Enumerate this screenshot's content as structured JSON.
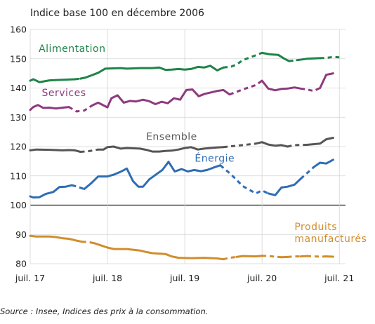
{
  "chart_data": {
    "type": "line",
    "title": "Indice base 100 en décembre 2006",
    "ylim": [
      80,
      160
    ],
    "yticks": [
      80,
      90,
      100,
      110,
      120,
      130,
      140,
      150,
      160
    ],
    "xlim": [
      2017.5,
      2021.58
    ],
    "xticks": [
      {
        "x": 2017.5,
        "label": "juil. 17"
      },
      {
        "x": 2018.5,
        "label": "juil. 18"
      },
      {
        "x": 2019.5,
        "label": "juil. 19"
      },
      {
        "x": 2020.5,
        "label": "juil. 20"
      },
      {
        "x": 2021.5,
        "label": "juil. 21"
      }
    ],
    "reference_line": 100,
    "grid": true,
    "series": [
      {
        "name": "Alimentation",
        "color": "#1e8449",
        "points": [
          [
            2017.5,
            142.5
          ],
          [
            2017.54,
            143
          ],
          [
            2017.62,
            142
          ],
          [
            2017.75,
            142.6
          ],
          [
            2017.92,
            142.8
          ],
          [
            2018.08,
            143
          ],
          [
            2018.15,
            143.2
          ],
          [
            2018.22,
            143.6
          ],
          [
            2018.38,
            145.2
          ],
          [
            2018.47,
            146.6
          ],
          [
            2018.67,
            146.8
          ],
          [
            2018.75,
            146.6
          ],
          [
            2018.92,
            146.8
          ],
          [
            2019.08,
            146.8
          ],
          [
            2019.17,
            147
          ],
          [
            2019.25,
            146.2
          ],
          [
            2019.33,
            146.3
          ],
          [
            2019.42,
            146.5
          ],
          [
            2019.5,
            146.3
          ],
          [
            2019.58,
            146.5
          ],
          [
            2019.67,
            147.2
          ],
          [
            2019.75,
            147
          ],
          [
            2019.83,
            147.6
          ],
          [
            2019.92,
            146
          ],
          [
            2020,
            147
          ],
          [
            2020.1,
            147.3
          ],
          [
            2020.17,
            148
          ],
          [
            2020.25,
            149.5
          ],
          [
            2020.4,
            151
          ],
          [
            2020.5,
            152
          ],
          [
            2020.6,
            151.5
          ],
          [
            2020.71,
            151.3
          ],
          [
            2020.79,
            150
          ],
          [
            2020.85,
            149.2
          ],
          [
            2020.95,
            149.5
          ],
          [
            2021.08,
            150
          ],
          [
            2021.25,
            150.2
          ],
          [
            2021.33,
            150.3
          ],
          [
            2021.42,
            150.6
          ],
          [
            2021.5,
            150.5
          ]
        ],
        "solid_segments": [
          [
            0,
            6
          ],
          [
            6,
            25
          ],
          [
            29,
            34
          ],
          [
            34,
            37
          ]
        ],
        "dashed_segments": [
          [
            5,
            7
          ],
          [
            24,
            30
          ],
          [
            33,
            35
          ],
          [
            36,
            40
          ]
        ]
      },
      {
        "name": "Services",
        "color": "#8e3a7d",
        "points": [
          [
            2017.5,
            132.5
          ],
          [
            2017.54,
            133.5
          ],
          [
            2017.6,
            134.2
          ],
          [
            2017.67,
            133.2
          ],
          [
            2017.75,
            133.3
          ],
          [
            2017.83,
            133
          ],
          [
            2017.92,
            133.3
          ],
          [
            2018,
            133.5
          ],
          [
            2018.1,
            132
          ],
          [
            2018.2,
            132.3
          ],
          [
            2018.3,
            134
          ],
          [
            2018.38,
            135
          ],
          [
            2018.5,
            133.4
          ],
          [
            2018.55,
            136.5
          ],
          [
            2018.63,
            137.5
          ],
          [
            2018.71,
            135
          ],
          [
            2018.79,
            135.6
          ],
          [
            2018.87,
            135.4
          ],
          [
            2018.96,
            136
          ],
          [
            2019.04,
            135.5
          ],
          [
            2019.12,
            134.5
          ],
          [
            2019.2,
            135.3
          ],
          [
            2019.28,
            134.8
          ],
          [
            2019.36,
            136.5
          ],
          [
            2019.44,
            136
          ],
          [
            2019.52,
            139.3
          ],
          [
            2019.6,
            139.5
          ],
          [
            2019.68,
            137.2
          ],
          [
            2019.76,
            138
          ],
          [
            2019.84,
            138.5
          ],
          [
            2019.92,
            139
          ],
          [
            2020,
            139.3
          ],
          [
            2020.08,
            137.8
          ],
          [
            2020.25,
            139.5
          ],
          [
            2020.42,
            141
          ],
          [
            2020.5,
            142.5
          ],
          [
            2020.58,
            139.8
          ],
          [
            2020.67,
            139.2
          ],
          [
            2020.75,
            139.7
          ],
          [
            2020.83,
            139.8
          ],
          [
            2020.92,
            140.2
          ],
          [
            2021,
            139.8
          ],
          [
            2021.08,
            139.5
          ],
          [
            2021.17,
            139
          ],
          [
            2021.25,
            140
          ],
          [
            2021.33,
            144.5
          ],
          [
            2021.42,
            145
          ]
        ],
        "solid_segments": [
          [
            0,
            8
          ],
          [
            10,
            33
          ],
          [
            35,
            42
          ],
          [
            44,
            47
          ]
        ],
        "dashed_segments": [
          [
            7,
            11
          ],
          [
            32,
            36
          ],
          [
            41,
            45
          ]
        ]
      },
      {
        "name": "Ensemble",
        "color": "#555555",
        "points": [
          [
            2017.5,
            118.7
          ],
          [
            2017.58,
            119
          ],
          [
            2017.75,
            118.9
          ],
          [
            2017.92,
            118.7
          ],
          [
            2018,
            118.8
          ],
          [
            2018.08,
            118.7
          ],
          [
            2018.15,
            118.2
          ],
          [
            2018.25,
            118.4
          ],
          [
            2018.38,
            119
          ],
          [
            2018.45,
            119
          ],
          [
            2018.5,
            119.8
          ],
          [
            2018.58,
            120
          ],
          [
            2018.67,
            119.3
          ],
          [
            2018.75,
            119.5
          ],
          [
            2018.92,
            119.3
          ],
          [
            2019,
            118.9
          ],
          [
            2019.08,
            118.3
          ],
          [
            2019.17,
            118.3
          ],
          [
            2019.25,
            118.5
          ],
          [
            2019.33,
            118.6
          ],
          [
            2019.42,
            119
          ],
          [
            2019.5,
            119.5
          ],
          [
            2019.58,
            119.8
          ],
          [
            2019.67,
            119
          ],
          [
            2019.75,
            119.3
          ],
          [
            2019.92,
            119.7
          ],
          [
            2020,
            119.8
          ],
          [
            2020.25,
            120.5
          ],
          [
            2020.42,
            121
          ],
          [
            2020.5,
            121.5
          ],
          [
            2020.58,
            120.7
          ],
          [
            2020.67,
            120.3
          ],
          [
            2020.75,
            120.5
          ],
          [
            2020.83,
            120
          ],
          [
            2020.92,
            120.5
          ],
          [
            2021.08,
            120.6
          ],
          [
            2021.25,
            121
          ],
          [
            2021.33,
            122.5
          ],
          [
            2021.42,
            123
          ]
        ],
        "solid_segments": [
          [
            0,
            7
          ],
          [
            8,
            27
          ],
          [
            28,
            34
          ],
          [
            35,
            39
          ]
        ],
        "dashed_segments": [
          [
            6,
            9
          ],
          [
            26,
            29
          ],
          [
            33,
            36
          ]
        ]
      },
      {
        "name": "Énergie",
        "color": "#2e6db4",
        "points": [
          [
            2017.5,
            103
          ],
          [
            2017.54,
            102.6
          ],
          [
            2017.62,
            102.7
          ],
          [
            2017.7,
            103.8
          ],
          [
            2017.8,
            104.5
          ],
          [
            2017.88,
            106.2
          ],
          [
            2017.96,
            106.3
          ],
          [
            2018.04,
            106.8
          ],
          [
            2018.12,
            106.2
          ],
          [
            2018.2,
            105.5
          ],
          [
            2018.29,
            107.5
          ],
          [
            2018.38,
            109.8
          ],
          [
            2018.5,
            109.8
          ],
          [
            2018.58,
            110.4
          ],
          [
            2018.67,
            111.4
          ],
          [
            2018.75,
            112.5
          ],
          [
            2018.83,
            108.2
          ],
          [
            2018.9,
            106.3
          ],
          [
            2018.96,
            106.3
          ],
          [
            2019.04,
            108.8
          ],
          [
            2019.13,
            110.5
          ],
          [
            2019.21,
            112
          ],
          [
            2019.29,
            114.8
          ],
          [
            2019.37,
            111.5
          ],
          [
            2019.46,
            112.3
          ],
          [
            2019.54,
            111.5
          ],
          [
            2019.62,
            112
          ],
          [
            2019.71,
            111.6
          ],
          [
            2019.79,
            112
          ],
          [
            2019.87,
            112.8
          ],
          [
            2019.96,
            113.6
          ],
          [
            2020.1,
            110.5
          ],
          [
            2020.25,
            106.5
          ],
          [
            2020.42,
            104
          ],
          [
            2020.5,
            105
          ],
          [
            2020.58,
            104
          ],
          [
            2020.67,
            103.4
          ],
          [
            2020.75,
            106
          ],
          [
            2020.83,
            106.3
          ],
          [
            2020.92,
            107
          ],
          [
            2021,
            109
          ],
          [
            2021.17,
            113
          ],
          [
            2021.25,
            114.5
          ],
          [
            2021.33,
            114.2
          ],
          [
            2021.42,
            115.5
          ]
        ],
        "solid_segments": [
          [
            0,
            8
          ],
          [
            9,
            31
          ],
          [
            35,
            41
          ],
          [
            41,
            45
          ]
        ],
        "dashed_segments": [
          [
            7,
            10
          ],
          [
            30,
            36
          ],
          [
            40,
            42
          ]
        ]
      },
      {
        "name": "Produits manufacturés",
        "color": "#d08d2c",
        "points": [
          [
            2017.5,
            89.5
          ],
          [
            2017.58,
            89.3
          ],
          [
            2017.75,
            89.3
          ],
          [
            2017.83,
            89.1
          ],
          [
            2017.92,
            88.7
          ],
          [
            2018,
            88.5
          ],
          [
            2018.08,
            88
          ],
          [
            2018.17,
            87.5
          ],
          [
            2018.25,
            87.4
          ],
          [
            2018.33,
            87
          ],
          [
            2018.42,
            86.2
          ],
          [
            2018.5,
            85.5
          ],
          [
            2018.58,
            85
          ],
          [
            2018.75,
            85
          ],
          [
            2018.92,
            84.5
          ],
          [
            2019,
            84
          ],
          [
            2019.08,
            83.6
          ],
          [
            2019.25,
            83.3
          ],
          [
            2019.33,
            82.5
          ],
          [
            2019.42,
            82
          ],
          [
            2019.58,
            81.9
          ],
          [
            2019.75,
            82
          ],
          [
            2019.92,
            81.8
          ],
          [
            2020,
            81.5
          ],
          [
            2020.08,
            82
          ],
          [
            2020.17,
            82.3
          ],
          [
            2020.25,
            82.6
          ],
          [
            2020.42,
            82.5
          ],
          [
            2020.5,
            82.7
          ],
          [
            2020.58,
            82.6
          ],
          [
            2020.75,
            82.2
          ],
          [
            2020.83,
            82.3
          ],
          [
            2020.92,
            82.5
          ],
          [
            2021,
            82.5
          ],
          [
            2021.08,
            82.6
          ],
          [
            2021.25,
            82.4
          ],
          [
            2021.33,
            82.5
          ],
          [
            2021.42,
            82.4
          ]
        ],
        "solid_segments": [
          [
            0,
            8
          ],
          [
            9,
            24
          ],
          [
            25,
            29
          ],
          [
            30,
            32
          ],
          [
            33,
            35
          ],
          [
            36,
            38
          ]
        ],
        "dashed_segments": [
          [
            7,
            10
          ],
          [
            23,
            26
          ],
          [
            28,
            31
          ],
          [
            31,
            34
          ],
          [
            34,
            37
          ]
        ]
      }
    ],
    "labels": [
      {
        "series": 0,
        "lines": [
          "Alimentation"
        ],
        "x": 2017.61,
        "y": 152.3,
        "anchor": "start"
      },
      {
        "series": 1,
        "lines": [
          "Services"
        ],
        "x": 2017.65,
        "y": 137.3,
        "anchor": "start"
      },
      {
        "series": 2,
        "lines": [
          "Ensemble"
        ],
        "x": 2019.0,
        "y": 122.3,
        "anchor": "start"
      },
      {
        "series": 3,
        "lines": [
          "Énergie"
        ],
        "x": 2019.63,
        "y": 114.9,
        "anchor": "start"
      },
      {
        "series": 4,
        "lines": [
          "Produits",
          "manufacturés"
        ],
        "x": 2020.92,
        "y": 91.5,
        "anchor": "start"
      }
    ]
  },
  "source": "Source : Insee, Indices des prix à la consommation."
}
